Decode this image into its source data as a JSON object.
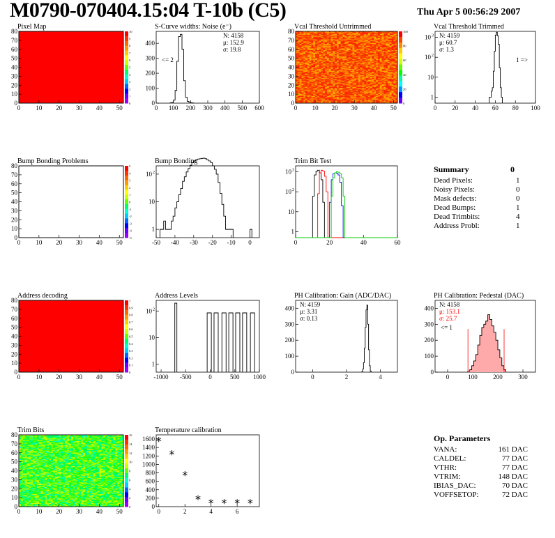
{
  "header": {
    "title": "M0790-070404.15:04 T-10b (C5)",
    "date": "Thu Apr  5 00:56:29 2007"
  },
  "colors": {
    "red": "#ff0000",
    "green": "#00cc00",
    "blue": "#0000ff",
    "black": "#000000"
  },
  "colz_labels": {
    "pixel_map": [
      "10",
      "9",
      "8",
      "7",
      "6",
      "5",
      "4",
      "3",
      "2",
      "1",
      "0"
    ],
    "bump_problems": [
      "5",
      "4",
      "3",
      "2",
      "1",
      "0",
      "-1",
      "-2",
      "-3",
      "-4",
      "-5"
    ],
    "vcal_untrimmed": [
      "100",
      "80",
      "60",
      "40",
      "20",
      "0"
    ],
    "address_decoding": [
      "1",
      "0.9",
      "0.8",
      "0.7",
      "0.6",
      "0.5",
      "0.4",
      "0.3",
      "0.2",
      "0.1",
      "0"
    ],
    "trim_bits": [
      "16",
      "14",
      "12",
      "10",
      "8",
      "6",
      "4",
      "2",
      "0"
    ]
  },
  "chart_data": [
    {
      "id": "pixel_map",
      "type": "heatmap",
      "title": "Pixel Map",
      "xlim": [
        0,
        52
      ],
      "ylim": [
        0,
        80
      ],
      "xticks": [
        "0",
        "10",
        "20",
        "30",
        "40",
        "50"
      ],
      "yticks": [
        "0",
        "10",
        "20",
        "30",
        "40",
        "50",
        "60",
        "70",
        "80"
      ],
      "zrange": [
        0,
        10
      ],
      "fill": "uniform red (max)"
    },
    {
      "id": "scurve",
      "type": "bar",
      "title": "S-Curve widths: Noise (e⁻)",
      "xlim": [
        0,
        600
      ],
      "ylim": [
        0,
        480
      ],
      "xticks": [
        "0",
        "100",
        "200",
        "300",
        "400",
        "500",
        "600"
      ],
      "yticks": [
        "0",
        "100",
        "200",
        "300",
        "400"
      ],
      "stats": [
        {
          "label": "N:",
          "value": "4158"
        },
        {
          "label": "μ:",
          "value": "152.9"
        },
        {
          "label": "σ:",
          "value": "19.8"
        }
      ],
      "annotation": "<= 2",
      "hist": {
        "x0": 80,
        "width": 10,
        "values": [
          2,
          5,
          20,
          85,
          280,
          445,
          460,
          360,
          150,
          40,
          12,
          6,
          3,
          1
        ]
      }
    },
    {
      "id": "vcal_untrimmed",
      "type": "heatmap",
      "title": "Vcal Threshold Untrimmed",
      "xlim": [
        0,
        52
      ],
      "ylim": [
        0,
        80
      ],
      "xticks": [
        "0",
        "10",
        "20",
        "30",
        "40",
        "50"
      ],
      "yticks": [
        "0",
        "10",
        "20",
        "30",
        "40",
        "50",
        "60",
        "70",
        "80"
      ],
      "zrange": [
        0,
        100
      ],
      "fill": "noisy orange/red"
    },
    {
      "id": "vcal_trimmed",
      "type": "bar",
      "title": "Vcal Threshold Trimmed",
      "xlim": [
        0,
        100
      ],
      "logy": true,
      "xticks": [
        "0",
        "20",
        "40",
        "60",
        "80",
        "100"
      ],
      "yticks": [
        "1",
        "10",
        "10²",
        "10³"
      ],
      "stats": [
        {
          "label": "N:",
          "value": "4159"
        },
        {
          "label": "μ:",
          "value": "60.7"
        },
        {
          "label": "σ:",
          "value": "1.3"
        }
      ],
      "annotation": "1 =>",
      "hist": {
        "x0": 54,
        "width": 1,
        "values": [
          1,
          1,
          2,
          3,
          20,
          200,
          1300,
          1800,
          1200,
          450,
          30,
          3,
          1
        ]
      }
    },
    {
      "id": "bump_problems",
      "type": "heatmap",
      "title": "Bump Bonding Problems",
      "xlim": [
        0,
        52
      ],
      "ylim": [
        0,
        80
      ],
      "xticks": [
        "0",
        "10",
        "20",
        "30",
        "40",
        "50"
      ],
      "yticks": [
        "0",
        "10",
        "20",
        "30",
        "40",
        "50",
        "60",
        "70",
        "80"
      ],
      "zrange": [
        -5,
        5
      ],
      "fill": "empty"
    },
    {
      "id": "bump_bonding",
      "type": "bar",
      "title": "Bump Bonding",
      "xlim": [
        -50,
        5
      ],
      "logy": true,
      "xticks": [
        "-50",
        "-40",
        "-30",
        "-20",
        "-10",
        "0"
      ],
      "yticks": [
        "1",
        "10",
        "10²"
      ],
      "hist": {
        "x0": -48,
        "width": 1,
        "values": [
          1,
          1,
          2,
          1,
          1,
          1,
          2,
          3,
          6,
          10,
          18,
          30,
          55,
          80,
          120,
          160,
          210,
          260,
          300,
          330,
          350,
          360,
          370,
          380,
          360,
          330,
          300,
          260,
          200,
          150,
          100,
          50,
          20,
          8,
          3,
          1,
          1,
          1,
          1
        ]
      },
      "extra": [
        {
          "x": 0,
          "value": 1
        }
      ]
    },
    {
      "id": "trim_bit_test",
      "type": "line",
      "title": "Trim Bit Test",
      "xlim": [
        0,
        60
      ],
      "logy": true,
      "xticks": [
        "0",
        "20",
        "40",
        "60"
      ],
      "yticks": [
        "1",
        "10",
        "10²",
        "10³"
      ],
      "series": [
        {
          "color": "#000000",
          "x0": 10,
          "values": [
            60,
            700,
            1100,
            1200,
            900,
            400,
            30
          ]
        },
        {
          "color": "#ff0000",
          "x0": 13,
          "values": [
            80,
            900,
            1200,
            1100,
            600,
            100
          ]
        },
        {
          "color": "#0000ff",
          "x0": 20,
          "values": [
            30,
            400,
            800,
            900,
            850,
            700,
            300,
            20
          ]
        },
        {
          "color": "#00cc00",
          "x0": 21,
          "values": [
            60,
            500,
            900,
            1000,
            950,
            800,
            500,
            60
          ]
        }
      ]
    },
    {
      "id": "address_decoding",
      "type": "heatmap",
      "title": "Address decoding",
      "xlim": [
        0,
        52
      ],
      "ylim": [
        0,
        80
      ],
      "xticks": [
        "0",
        "10",
        "20",
        "30",
        "40",
        "50"
      ],
      "yticks": [
        "0",
        "10",
        "20",
        "30",
        "40",
        "50",
        "60",
        "70",
        "80"
      ],
      "zrange": [
        0,
        1
      ],
      "fill": "uniform red (max)"
    },
    {
      "id": "address_levels",
      "type": "bar",
      "title": "Address Levels",
      "xlim": [
        -1100,
        1000
      ],
      "logy": true,
      "xticks": [
        "-1000",
        "-500",
        "0",
        "500",
        "1000"
      ],
      "yticks": [
        "1",
        "10",
        "10²"
      ],
      "peaks": [
        -700,
        -20,
        120,
        280,
        420,
        560,
        700,
        860
      ]
    },
    {
      "id": "ph_gain",
      "type": "bar",
      "title": "PH Calibration: Gain (ADC/DAC)",
      "xlim": [
        -1,
        5
      ],
      "ylim": [
        0,
        450
      ],
      "xticks": [
        "0",
        "2",
        "4"
      ],
      "yticks": [
        "0",
        "100",
        "200",
        "300",
        "400"
      ],
      "stats": [
        {
          "label": "N:",
          "value": "4159"
        },
        {
          "label": "μ:",
          "value": "3.31"
        },
        {
          "label": "σ:",
          "value": "0.13"
        }
      ],
      "hist": {
        "x0": 2.9,
        "width": 0.05,
        "values": [
          3,
          20,
          60,
          150,
          280,
          390,
          420,
          300,
          140,
          40,
          6
        ]
      }
    },
    {
      "id": "ph_pedestal",
      "type": "bar",
      "title": "PH Calibration: Pedestal (DAC)",
      "xlim": [
        -50,
        350
      ],
      "ylim": [
        0,
        450
      ],
      "xticks": [
        "0",
        "100",
        "200",
        "300"
      ],
      "yticks": [
        "0",
        "100",
        "200",
        "300",
        "400"
      ],
      "stats": [
        {
          "label": "N:",
          "value": "4158"
        },
        {
          "label": "μ:",
          "value": "153.1",
          "color": "#ff0000"
        },
        {
          "label": "σ:",
          "value": "25.7",
          "color": "#ff0000"
        }
      ],
      "annotation": "<= 1",
      "hist": {
        "x0": 80,
        "width": 8,
        "values": [
          5,
          15,
          40,
          70,
          110,
          170,
          230,
          280,
          300,
          320,
          360,
          330,
          290,
          250,
          200,
          140,
          90,
          40,
          15
        ]
      },
      "markers": [
        {
          "x": 81
        },
        {
          "x": 225
        }
      ]
    },
    {
      "id": "trim_bits",
      "type": "heatmap",
      "title": "Trim Bits",
      "xlim": [
        0,
        52
      ],
      "ylim": [
        0,
        80
      ],
      "xticks": [
        "0",
        "10",
        "20",
        "30",
        "40",
        "50"
      ],
      "yticks": [
        "0",
        "10",
        "20",
        "30",
        "40",
        "50",
        "60",
        "70",
        "80"
      ],
      "zrange": [
        0,
        16
      ],
      "fill": "noisy green"
    },
    {
      "id": "temp_cal",
      "type": "scatter",
      "title": "Temperature calibration",
      "xlim": [
        -0.2,
        7.7
      ],
      "ylim": [
        0,
        1700
      ],
      "xticks": [
        "0",
        "2",
        "4",
        "6"
      ],
      "yticks": [
        "0",
        "200",
        "400",
        "600",
        "800",
        "1000",
        "1200",
        "1400",
        "1600"
      ],
      "points": [
        [
          0,
          1530
        ],
        [
          1,
          1210
        ],
        [
          2,
          720
        ],
        [
          3,
          150
        ],
        [
          4,
          60
        ],
        [
          5,
          60
        ],
        [
          6,
          60
        ],
        [
          7,
          60
        ]
      ]
    }
  ],
  "summary": {
    "title": "Summary",
    "total": "0",
    "rows": [
      {
        "label": "Dead Pixels:",
        "value": "1"
      },
      {
        "label": "Noisy Pixels:",
        "value": "0"
      },
      {
        "label": "Mask defects:",
        "value": "0"
      },
      {
        "label": "Dead Bumps:",
        "value": "1"
      },
      {
        "label": "Dead Trimbits:",
        "value": "4"
      },
      {
        "label": "Address Probl:",
        "value": "1"
      }
    ]
  },
  "op_parameters": {
    "title": "Op. Parameters",
    "rows": [
      {
        "label": "VANA:",
        "value": "161 DAC"
      },
      {
        "label": "CALDEL:",
        "value": "77 DAC"
      },
      {
        "label": "VTHR:",
        "value": "77 DAC"
      },
      {
        "label": "VTRIM:",
        "value": "148 DAC"
      },
      {
        "label": "IBIAS_DAC:",
        "value": "70 DAC"
      },
      {
        "label": "VOFFSETOP:",
        "value": "72 DAC"
      }
    ]
  }
}
